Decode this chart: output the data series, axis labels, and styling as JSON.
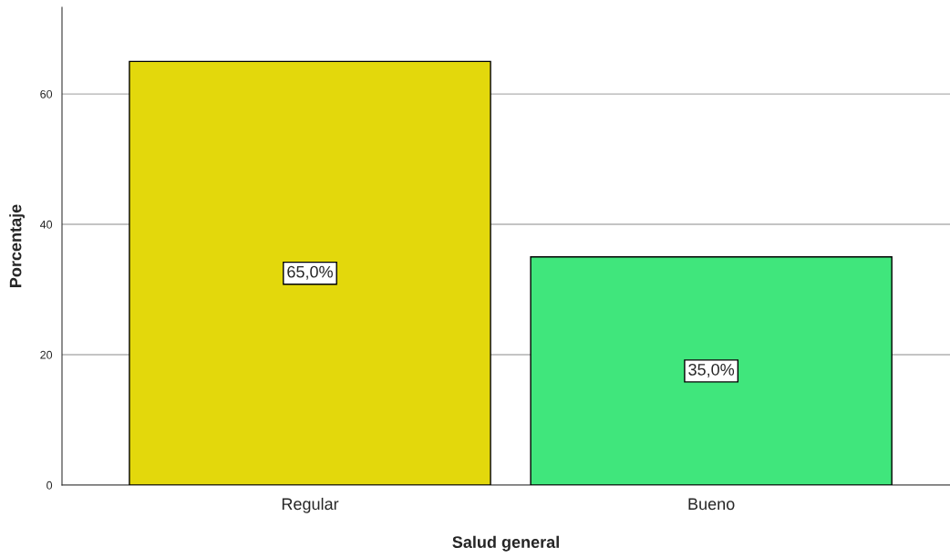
{
  "chart_data": {
    "type": "bar",
    "xlabel": "Salud general",
    "ylabel": "Porcentaje",
    "categories": [
      "Regular",
      "Bueno"
    ],
    "values": [
      65,
      35
    ],
    "colors": [
      "#e3d80c",
      "#40e67c"
    ],
    "value_labels": [
      "65,0%",
      "35,0%"
    ],
    "ylim": [
      0,
      73.3
    ],
    "yticks": [
      0,
      20,
      40,
      60
    ],
    "grid": "y",
    "legend": false
  }
}
